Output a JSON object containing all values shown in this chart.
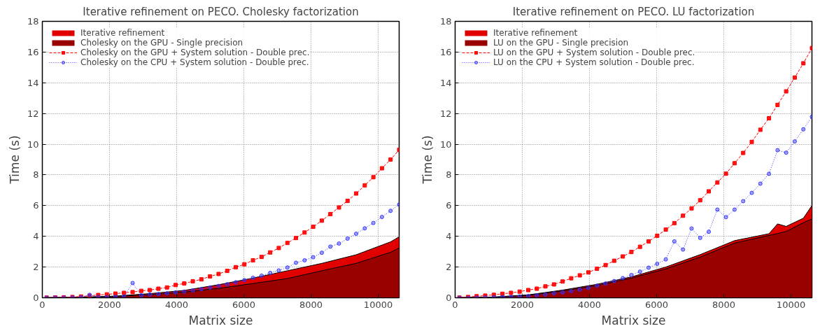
{
  "chart_data": [
    {
      "type": "line",
      "title": "Iterative refinement on PECO. Cholesky factorization",
      "xlabel": "Matrix size",
      "ylabel": "Time (s)",
      "xlim": [
        0,
        10624
      ],
      "ylim": [
        0,
        18
      ],
      "xticks": [
        0,
        2000,
        4000,
        6000,
        8000,
        10000
      ],
      "yticks": [
        0,
        2,
        4,
        6,
        8,
        10,
        12,
        14,
        16,
        18
      ],
      "grid": true,
      "legend": "top left",
      "series": [
        {
          "name": "Iterative refinement",
          "type": "area",
          "color": "#e00000",
          "x": [
            128,
            1152,
            2176,
            3200,
            4224,
            5248,
            6272,
            7296,
            8320,
            9344,
            10368,
            10624
          ],
          "values": [
            0.01,
            0.04,
            0.11,
            0.27,
            0.48,
            0.85,
            1.28,
            1.76,
            2.24,
            2.8,
            3.64,
            3.97
          ]
        },
        {
          "name": "Cholesky on the GPU - Single precision",
          "type": "area",
          "color": "#990000",
          "x": [
            128,
            1152,
            2176,
            3200,
            4224,
            5248,
            6272,
            7296,
            8320,
            9344,
            10368,
            10624
          ],
          "values": [
            0.01,
            0.03,
            0.08,
            0.21,
            0.37,
            0.61,
            0.93,
            1.25,
            1.76,
            2.24,
            2.96,
            3.24
          ]
        },
        {
          "name": "Cholesky on the GPU + System solution - Double prec.",
          "color": "#ff0000",
          "marker": "square",
          "line_style": "dashed",
          "x": [
            128,
            384,
            640,
            896,
            1152,
            1408,
            1664,
            1920,
            2176,
            2432,
            2688,
            2944,
            3200,
            3456,
            3712,
            3968,
            4224,
            4480,
            4736,
            4992,
            5248,
            5504,
            5760,
            6016,
            6272,
            6528,
            6784,
            7040,
            7296,
            7552,
            7808,
            8064,
            8320,
            8576,
            8832,
            9088,
            9344,
            9600,
            9856,
            10112,
            10368,
            10624
          ],
          "values": [
            0.01,
            0.02,
            0.03,
            0.05,
            0.08,
            0.13,
            0.18,
            0.22,
            0.27,
            0.32,
            0.37,
            0.45,
            0.5,
            0.59,
            0.67,
            0.83,
            0.93,
            1.07,
            1.2,
            1.39,
            1.55,
            1.75,
            1.99,
            2.18,
            2.44,
            2.66,
            2.95,
            3.24,
            3.57,
            3.89,
            4.25,
            4.62,
            5.02,
            5.45,
            5.88,
            6.31,
            6.79,
            7.32,
            7.85,
            8.43,
            9.0,
            9.63
          ]
        },
        {
          "name": "Cholesky on the CPU + System solution - Double prec.",
          "color": "#3333ff",
          "marker": "circle",
          "line_style": "dotted",
          "x": [
            128,
            384,
            640,
            896,
            1152,
            1408,
            1664,
            1920,
            2176,
            2432,
            2688,
            2944,
            3200,
            3456,
            3712,
            3968,
            4224,
            4480,
            4736,
            4992,
            5248,
            5504,
            5760,
            6016,
            6272,
            6528,
            6784,
            7040,
            7296,
            7552,
            7808,
            8064,
            8320,
            8576,
            8832,
            9088,
            9344,
            9600,
            9856,
            10112,
            10368,
            10624
          ],
          "values": [
            0.0,
            0.01,
            0.01,
            0.02,
            0.03,
            0.19,
            0.05,
            0.05,
            0.06,
            0.08,
            0.96,
            0.16,
            0.21,
            0.24,
            0.29,
            0.35,
            0.4,
            0.48,
            0.56,
            0.66,
            0.77,
            0.88,
            1.01,
            1.15,
            1.3,
            1.44,
            1.62,
            1.78,
            1.97,
            2.28,
            2.44,
            2.64,
            2.93,
            3.33,
            3.53,
            3.85,
            4.17,
            4.52,
            4.87,
            5.26,
            5.66,
            6.07
          ]
        }
      ]
    },
    {
      "type": "line",
      "title": "Iterative refinement on PECO. LU factorization",
      "xlabel": "Matrix size",
      "ylabel": "Time (s)",
      "xlim": [
        0,
        10624
      ],
      "ylim": [
        0,
        18
      ],
      "xticks": [
        0,
        2000,
        4000,
        6000,
        8000,
        10000
      ],
      "yticks": [
        0,
        2,
        4,
        6,
        8,
        10,
        12,
        14,
        16,
        18
      ],
      "grid": true,
      "legend": "top left",
      "series": [
        {
          "name": "Iterative refinement",
          "type": "area",
          "color": "#e00000",
          "x": [
            128,
            1152,
            2176,
            3200,
            4224,
            5248,
            6272,
            7296,
            8320,
            9344,
            9600,
            9856,
            10368,
            10624
          ],
          "values": [
            0.01,
            0.05,
            0.19,
            0.5,
            0.88,
            1.36,
            2.0,
            2.81,
            3.72,
            4.17,
            4.81,
            4.65,
            5.18,
            6.01
          ]
        },
        {
          "name": "LU on the GPU - Single precision",
          "type": "area",
          "color": "#990000",
          "x": [
            128,
            1152,
            2176,
            3200,
            4224,
            5248,
            6272,
            7296,
            8320,
            9344,
            9600,
            9856,
            10368,
            10624
          ],
          "values": [
            0.01,
            0.04,
            0.16,
            0.45,
            0.8,
            1.28,
            1.88,
            2.65,
            3.56,
            4.06,
            4.18,
            4.32,
            4.89,
            5.13
          ]
        },
        {
          "name": "LU on the GPU + System solution - Double prec.",
          "color": "#ff0000",
          "marker": "square",
          "line_style": "dashed",
          "x": [
            128,
            384,
            640,
            896,
            1152,
            1408,
            1664,
            1920,
            2176,
            2432,
            2688,
            2944,
            3200,
            3456,
            3712,
            3968,
            4224,
            4480,
            4736,
            4992,
            5248,
            5504,
            5760,
            6016,
            6272,
            6528,
            6784,
            7040,
            7296,
            7552,
            7808,
            8064,
            8320,
            8576,
            8832,
            9088,
            9344,
            9600,
            9856,
            10112,
            10368,
            10624
          ],
          "values": [
            0.01,
            0.05,
            0.1,
            0.14,
            0.19,
            0.26,
            0.32,
            0.4,
            0.5,
            0.59,
            0.74,
            0.87,
            1.06,
            1.27,
            1.46,
            1.65,
            1.89,
            2.13,
            2.41,
            2.69,
            2.98,
            3.32,
            3.67,
            4.04,
            4.44,
            4.86,
            5.34,
            5.82,
            6.35,
            6.93,
            7.51,
            8.08,
            8.76,
            9.43,
            10.15,
            10.94,
            11.69,
            12.56,
            13.44,
            14.34,
            15.27,
            16.26
          ]
        },
        {
          "name": "LU on the CPU + System solution - Double prec.",
          "color": "#3333ff",
          "marker": "circle",
          "line_style": "dotted",
          "x": [
            128,
            384,
            640,
            896,
            1152,
            1408,
            1664,
            1920,
            2176,
            2432,
            2688,
            2944,
            3200,
            3456,
            3712,
            3968,
            4224,
            4480,
            4736,
            4992,
            5248,
            5504,
            5760,
            6016,
            6272,
            6528,
            6784,
            7040,
            7296,
            7552,
            7808,
            8064,
            8320,
            8576,
            8832,
            9088,
            9344,
            9600,
            9856,
            10112,
            10368,
            10624
          ],
          "values": [
            0.0,
            0.0,
            0.01,
            0.02,
            0.03,
            0.05,
            0.06,
            0.08,
            0.11,
            0.16,
            0.21,
            0.29,
            0.35,
            0.43,
            0.53,
            0.64,
            0.79,
            0.93,
            1.09,
            1.28,
            1.48,
            1.7,
            1.96,
            2.21,
            2.5,
            3.67,
            3.14,
            4.51,
            3.9,
            4.3,
            5.74,
            5.25,
            5.74,
            6.29,
            6.83,
            7.43,
            8.07,
            9.61,
            9.45,
            10.18,
            10.97,
            11.79
          ]
        }
      ]
    }
  ]
}
